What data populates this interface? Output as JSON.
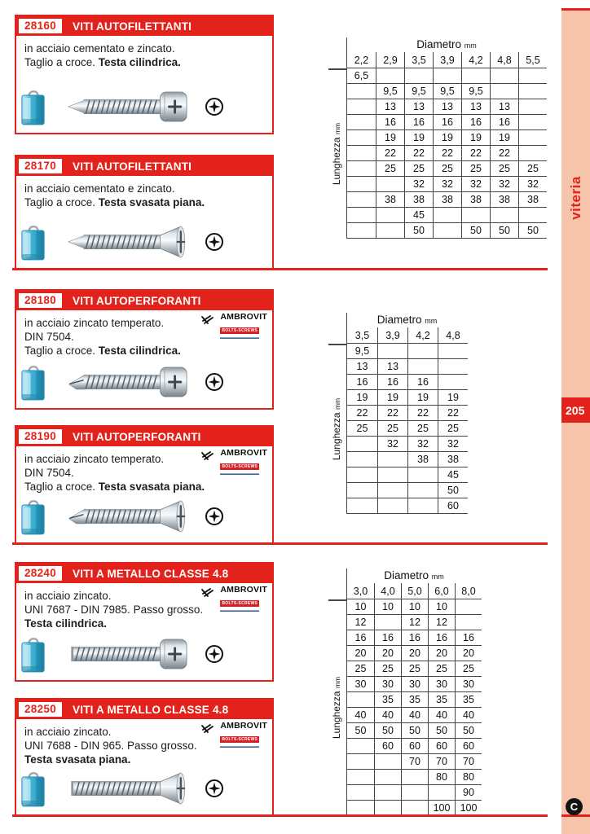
{
  "page": {
    "side_label": "viteria",
    "page_number": "205",
    "footer_logo_letter": "C"
  },
  "brand": {
    "name": "AMBROVIT",
    "tagline": "BOLTS-SCREWS"
  },
  "colors": {
    "red": "#e3231b",
    "sidebar": "#f6c4ab"
  },
  "sections": [
    {
      "code": "28160",
      "title": "VITI AUTOFILETTANTI",
      "desc": [
        [
          "in acciaio cementato e zincato.",
          ""
        ],
        [
          "Taglio a croce. ",
          "Testa cilindrica."
        ]
      ],
      "brand": false
    },
    {
      "code": "28170",
      "title": "VITI AUTOFILETTANTI",
      "desc": [
        [
          "in acciaio cementato e zincato.",
          ""
        ],
        [
          "Taglio a croce. ",
          "Testa svasata piana."
        ]
      ],
      "brand": false
    },
    {
      "code": "28180",
      "title": "VITI AUTOPERFORANTI",
      "desc": [
        [
          "in acciaio zincato temperato.",
          ""
        ],
        [
          "DIN 7504.",
          ""
        ],
        [
          "Taglio a croce. ",
          "Testa cilindrica."
        ]
      ],
      "brand": true
    },
    {
      "code": "28190",
      "title": "VITI AUTOPERFORANTI",
      "desc": [
        [
          "in acciaio zincato temperato.",
          ""
        ],
        [
          "DIN 7504.",
          ""
        ],
        [
          "Taglio a croce. ",
          "Testa svasata piana."
        ]
      ],
      "brand": true
    },
    {
      "code": "28240",
      "title": "VITI A METALLO CLASSE 4.8",
      "desc": [
        [
          "in acciaio zincato.",
          ""
        ],
        [
          "UNI 7687 - DIN 7985. Passo grosso.",
          ""
        ],
        [
          "",
          "Testa cilindrica."
        ]
      ],
      "brand": true
    },
    {
      "code": "28250",
      "title": "VITI A METALLO CLASSE 4.8",
      "desc": [
        [
          "in acciaio zincato.",
          ""
        ],
        [
          "UNI 7688 - DIN 965. Passo grosso.",
          ""
        ],
        [
          "",
          "Testa svasata piana."
        ]
      ],
      "brand": true
    }
  ],
  "tables": [
    {
      "title": "Diametro",
      "title_unit": "mm",
      "side_label": "Lunghezza",
      "side_unit": "mm",
      "columns": [
        "2,2",
        "2,9",
        "3,5",
        "3,9",
        "4,2",
        "4,8",
        "5,5"
      ],
      "rows": [
        [
          "6,5",
          "",
          "",
          "",
          "",
          "",
          ""
        ],
        [
          "",
          "9,5",
          "9,5",
          "9,5",
          "9,5",
          "",
          ""
        ],
        [
          "",
          "13",
          "13",
          "13",
          "13",
          "13",
          ""
        ],
        [
          "",
          "16",
          "16",
          "16",
          "16",
          "16",
          ""
        ],
        [
          "",
          "19",
          "19",
          "19",
          "19",
          "19",
          ""
        ],
        [
          "",
          "22",
          "22",
          "22",
          "22",
          "22",
          ""
        ],
        [
          "",
          "25",
          "25",
          "25",
          "25",
          "25",
          "25"
        ],
        [
          "",
          "",
          "32",
          "32",
          "32",
          "32",
          "32"
        ],
        [
          "",
          "38",
          "38",
          "38",
          "38",
          "38",
          "38"
        ],
        [
          "",
          "",
          "45",
          "",
          "",
          "",
          ""
        ],
        [
          "",
          "",
          "50",
          "",
          "50",
          "50",
          "50"
        ]
      ]
    },
    {
      "title": "Diametro",
      "title_unit": "mm",
      "side_label": "Lunghezza",
      "side_unit": "mm",
      "columns": [
        "3,5",
        "3,9",
        "4,2",
        "4,8"
      ],
      "rows": [
        [
          "9,5",
          "",
          "",
          ""
        ],
        [
          "13",
          "13",
          "",
          ""
        ],
        [
          "16",
          "16",
          "16",
          ""
        ],
        [
          "19",
          "19",
          "19",
          "19"
        ],
        [
          "22",
          "22",
          "22",
          "22"
        ],
        [
          "25",
          "25",
          "25",
          "25"
        ],
        [
          "",
          "32",
          "32",
          "32"
        ],
        [
          "",
          "",
          "38",
          "38"
        ],
        [
          "",
          "",
          "",
          "45"
        ],
        [
          "",
          "",
          "",
          "50"
        ],
        [
          "",
          "",
          "",
          "60"
        ]
      ]
    },
    {
      "title": "Diametro",
      "title_unit": "mm",
      "side_label": "Lunghezza",
      "side_unit": "mm",
      "columns": [
        "3,0",
        "4,0",
        "5,0",
        "6,0",
        "8,0"
      ],
      "rows": [
        [
          "10",
          "10",
          "10",
          "10",
          ""
        ],
        [
          "12",
          "",
          "12",
          "12",
          ""
        ],
        [
          "16",
          "16",
          "16",
          "16",
          "16"
        ],
        [
          "20",
          "20",
          "20",
          "20",
          "20"
        ],
        [
          "25",
          "25",
          "25",
          "25",
          "25"
        ],
        [
          "30",
          "30",
          "30",
          "30",
          "30"
        ],
        [
          "",
          "35",
          "35",
          "35",
          "35"
        ],
        [
          "40",
          "40",
          "40",
          "40",
          "40"
        ],
        [
          "50",
          "50",
          "50",
          "50",
          "50"
        ],
        [
          "",
          "60",
          "60",
          "60",
          "60"
        ],
        [
          "",
          "",
          "70",
          "70",
          "70"
        ],
        [
          "",
          "",
          "",
          "80",
          "80"
        ],
        [
          "",
          "",
          "",
          "",
          "90"
        ],
        [
          "",
          "",
          "",
          "100",
          "100"
        ]
      ]
    }
  ]
}
